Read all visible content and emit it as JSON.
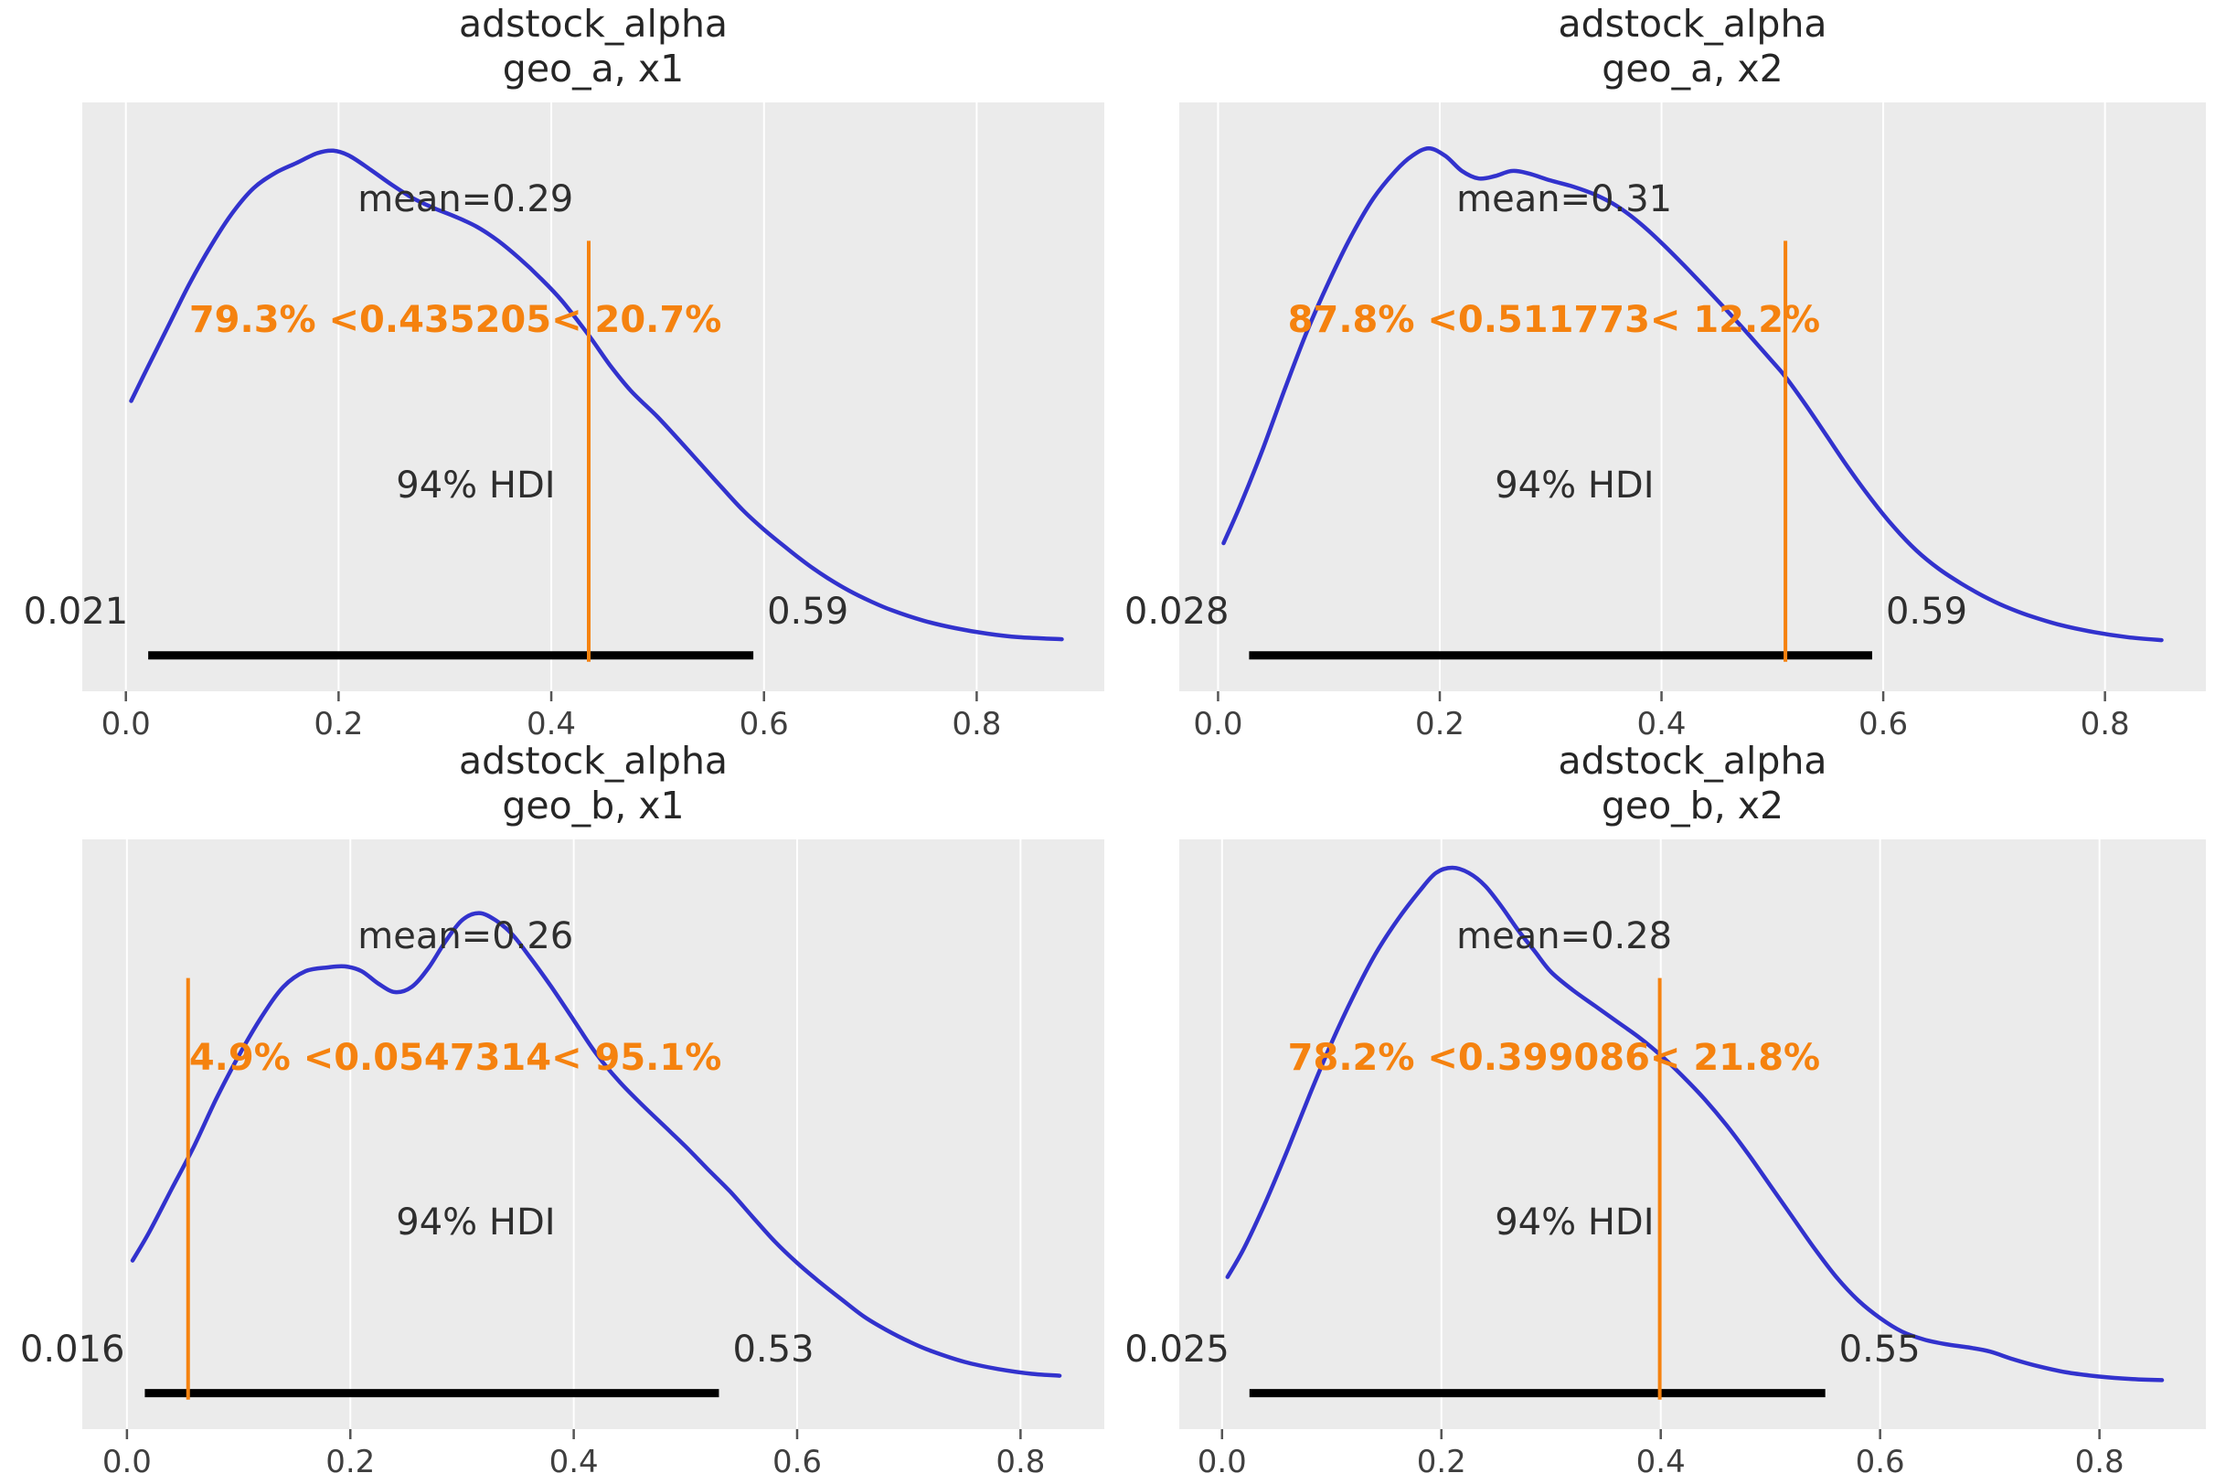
{
  "figure": {
    "background": "#ffffff",
    "plot_background": "#ebebeb",
    "grid_color": "#ffffff",
    "curve_color": "#3232cd",
    "ref_color": "#f5820f",
    "hdi_bar_color": "#000000",
    "title_color": "#262626",
    "text_color": "#2e2e2e",
    "tick_mark_color": "#555555",
    "tick_label_color": "#3f3f3f"
  },
  "chart_data": [
    {
      "id": "adstock_alpha_geo_a_x1",
      "type": "kde-posterior",
      "title_param": "adstock_alpha",
      "title_coord": "geo_a, x1",
      "mean": 0.29,
      "mean_label": "mean=0.29",
      "ref_value": 0.435205,
      "ref_label": "79.3% <0.435205< 20.7%",
      "hdi_text": "94% HDI",
      "hdi": [
        0.021,
        0.59
      ],
      "hdi_lower_label": "0.021",
      "hdi_upper_label": "0.59",
      "xlim": [
        -0.041,
        0.92
      ],
      "x_ticks": [
        0.0,
        0.2,
        0.4,
        0.6,
        0.8
      ],
      "x_tick_labels": [
        "0.0",
        "0.2",
        "0.4",
        "0.6",
        "0.8"
      ],
      "kde": [
        [
          0.005,
          0.5
        ],
        [
          0.02,
          0.565
        ],
        [
          0.04,
          0.65
        ],
        [
          0.06,
          0.735
        ],
        [
          0.08,
          0.81
        ],
        [
          0.1,
          0.875
        ],
        [
          0.12,
          0.925
        ],
        [
          0.14,
          0.955
        ],
        [
          0.16,
          0.975
        ],
        [
          0.18,
          0.995
        ],
        [
          0.195,
          1.0
        ],
        [
          0.21,
          0.99
        ],
        [
          0.23,
          0.962
        ],
        [
          0.25,
          0.932
        ],
        [
          0.27,
          0.905
        ],
        [
          0.29,
          0.885
        ],
        [
          0.31,
          0.868
        ],
        [
          0.33,
          0.848
        ],
        [
          0.35,
          0.82
        ],
        [
          0.37,
          0.785
        ],
        [
          0.39,
          0.745
        ],
        [
          0.41,
          0.7
        ],
        [
          0.435,
          0.632
        ],
        [
          0.455,
          0.572
        ],
        [
          0.475,
          0.52
        ],
        [
          0.5,
          0.468
        ],
        [
          0.52,
          0.422
        ],
        [
          0.54,
          0.375
        ],
        [
          0.56,
          0.328
        ],
        [
          0.58,
          0.282
        ],
        [
          0.6,
          0.243
        ],
        [
          0.62,
          0.208
        ],
        [
          0.64,
          0.175
        ],
        [
          0.66,
          0.146
        ],
        [
          0.68,
          0.121
        ],
        [
          0.7,
          0.1
        ],
        [
          0.72,
          0.082
        ],
        [
          0.75,
          0.061
        ],
        [
          0.78,
          0.046
        ],
        [
          0.81,
          0.035
        ],
        [
          0.84,
          0.028
        ],
        [
          0.88,
          0.024
        ]
      ]
    },
    {
      "id": "adstock_alpha_geo_a_x2",
      "type": "kde-posterior",
      "title_param": "adstock_alpha",
      "title_coord": "geo_a, x2",
      "mean": 0.31,
      "mean_label": "mean=0.31",
      "ref_value": 0.511773,
      "ref_label": "87.8% <0.511773< 12.2%",
      "hdi_text": "94% HDI",
      "hdi": [
        0.028,
        0.59
      ],
      "hdi_lower_label": "0.028",
      "hdi_upper_label": "0.59",
      "xlim": [
        -0.035,
        0.891
      ],
      "x_ticks": [
        0.0,
        0.2,
        0.4,
        0.6,
        0.8
      ],
      "x_tick_labels": [
        "0.0",
        "0.2",
        "0.4",
        "0.6",
        "0.8"
      ],
      "kde": [
        [
          0.005,
          0.215
        ],
        [
          0.02,
          0.29
        ],
        [
          0.04,
          0.4
        ],
        [
          0.06,
          0.52
        ],
        [
          0.08,
          0.635
        ],
        [
          0.1,
          0.735
        ],
        [
          0.12,
          0.825
        ],
        [
          0.14,
          0.9
        ],
        [
          0.16,
          0.955
        ],
        [
          0.175,
          0.985
        ],
        [
          0.19,
          1.0
        ],
        [
          0.205,
          0.985
        ],
        [
          0.22,
          0.955
        ],
        [
          0.235,
          0.94
        ],
        [
          0.25,
          0.945
        ],
        [
          0.265,
          0.955
        ],
        [
          0.28,
          0.95
        ],
        [
          0.3,
          0.936
        ],
        [
          0.32,
          0.924
        ],
        [
          0.34,
          0.908
        ],
        [
          0.36,
          0.885
        ],
        [
          0.38,
          0.852
        ],
        [
          0.4,
          0.812
        ],
        [
          0.42,
          0.768
        ],
        [
          0.44,
          0.722
        ],
        [
          0.46,
          0.675
        ],
        [
          0.48,
          0.626
        ],
        [
          0.5,
          0.576
        ],
        [
          0.512,
          0.545
        ],
        [
          0.53,
          0.49
        ],
        [
          0.55,
          0.425
        ],
        [
          0.57,
          0.36
        ],
        [
          0.59,
          0.3
        ],
        [
          0.61,
          0.246
        ],
        [
          0.63,
          0.2
        ],
        [
          0.65,
          0.164
        ],
        [
          0.67,
          0.135
        ],
        [
          0.69,
          0.11
        ],
        [
          0.71,
          0.089
        ],
        [
          0.73,
          0.072
        ],
        [
          0.76,
          0.052
        ],
        [
          0.79,
          0.038
        ],
        [
          0.82,
          0.028
        ],
        [
          0.851,
          0.022
        ]
      ]
    },
    {
      "id": "adstock_alpha_geo_b_x1",
      "type": "kde-posterior",
      "title_param": "adstock_alpha",
      "title_coord": "geo_b, x1",
      "mean": 0.26,
      "mean_label": "mean=0.26",
      "ref_value": 0.0547314,
      "ref_label": "4.9% <0.0547314< 95.1%",
      "hdi_text": "94% HDI",
      "hdi": [
        0.016,
        0.53
      ],
      "hdi_lower_label": "0.016",
      "hdi_upper_label": "0.53",
      "xlim": [
        -0.04,
        0.875
      ],
      "x_ticks": [
        0.0,
        0.2,
        0.4,
        0.6,
        0.8
      ],
      "x_tick_labels": [
        "0.0",
        "0.2",
        "0.4",
        "0.6",
        "0.8"
      ],
      "kde": [
        [
          0.005,
          0.27
        ],
        [
          0.02,
          0.33
        ],
        [
          0.04,
          0.42
        ],
        [
          0.06,
          0.51
        ],
        [
          0.08,
          0.61
        ],
        [
          0.1,
          0.7
        ],
        [
          0.12,
          0.78
        ],
        [
          0.14,
          0.845
        ],
        [
          0.16,
          0.878
        ],
        [
          0.18,
          0.886
        ],
        [
          0.195,
          0.888
        ],
        [
          0.21,
          0.878
        ],
        [
          0.225,
          0.852
        ],
        [
          0.24,
          0.834
        ],
        [
          0.255,
          0.845
        ],
        [
          0.27,
          0.885
        ],
        [
          0.285,
          0.94
        ],
        [
          0.3,
          0.985
        ],
        [
          0.315,
          1.0
        ],
        [
          0.33,
          0.985
        ],
        [
          0.345,
          0.955
        ],
        [
          0.36,
          0.91
        ],
        [
          0.38,
          0.845
        ],
        [
          0.4,
          0.775
        ],
        [
          0.42,
          0.705
        ],
        [
          0.44,
          0.648
        ],
        [
          0.46,
          0.6
        ],
        [
          0.48,
          0.555
        ],
        [
          0.5,
          0.51
        ],
        [
          0.52,
          0.462
        ],
        [
          0.54,
          0.415
        ],
        [
          0.56,
          0.362
        ],
        [
          0.58,
          0.31
        ],
        [
          0.6,
          0.265
        ],
        [
          0.62,
          0.225
        ],
        [
          0.64,
          0.188
        ],
        [
          0.66,
          0.152
        ],
        [
          0.68,
          0.124
        ],
        [
          0.7,
          0.1
        ],
        [
          0.72,
          0.08
        ],
        [
          0.75,
          0.057
        ],
        [
          0.78,
          0.042
        ],
        [
          0.81,
          0.032
        ],
        [
          0.835,
          0.028
        ]
      ]
    },
    {
      "id": "adstock_alpha_geo_b_x2",
      "type": "kde-posterior",
      "title_param": "adstock_alpha",
      "title_coord": "geo_b, x2",
      "mean": 0.28,
      "mean_label": "mean=0.28",
      "ref_value": 0.399086,
      "ref_label": "78.2% <0.399086< 21.8%",
      "hdi_text": "94% HDI",
      "hdi": [
        0.025,
        0.55
      ],
      "hdi_lower_label": "0.025",
      "hdi_upper_label": "0.55",
      "xlim": [
        -0.039,
        0.897
      ],
      "x_ticks": [
        0.0,
        0.2,
        0.4,
        0.6,
        0.8
      ],
      "x_tick_labels": [
        "0.0",
        "0.2",
        "0.4",
        "0.6",
        "0.8"
      ],
      "kde": [
        [
          0.005,
          0.215
        ],
        [
          0.02,
          0.27
        ],
        [
          0.04,
          0.36
        ],
        [
          0.06,
          0.46
        ],
        [
          0.08,
          0.565
        ],
        [
          0.1,
          0.665
        ],
        [
          0.12,
          0.755
        ],
        [
          0.14,
          0.835
        ],
        [
          0.16,
          0.9
        ],
        [
          0.18,
          0.955
        ],
        [
          0.195,
          0.99
        ],
        [
          0.21,
          1.0
        ],
        [
          0.225,
          0.99
        ],
        [
          0.24,
          0.965
        ],
        [
          0.255,
          0.925
        ],
        [
          0.27,
          0.88
        ],
        [
          0.285,
          0.84
        ],
        [
          0.3,
          0.8
        ],
        [
          0.32,
          0.765
        ],
        [
          0.34,
          0.735
        ],
        [
          0.36,
          0.705
        ],
        [
          0.38,
          0.675
        ],
        [
          0.399,
          0.642
        ],
        [
          0.42,
          0.6
        ],
        [
          0.44,
          0.556
        ],
        [
          0.46,
          0.506
        ],
        [
          0.48,
          0.45
        ],
        [
          0.5,
          0.39
        ],
        [
          0.52,
          0.33
        ],
        [
          0.54,
          0.27
        ],
        [
          0.56,
          0.215
        ],
        [
          0.58,
          0.17
        ],
        [
          0.6,
          0.136
        ],
        [
          0.62,
          0.11
        ],
        [
          0.64,
          0.095
        ],
        [
          0.66,
          0.086
        ],
        [
          0.68,
          0.08
        ],
        [
          0.7,
          0.072
        ],
        [
          0.72,
          0.058
        ],
        [
          0.74,
          0.046
        ],
        [
          0.77,
          0.032
        ],
        [
          0.8,
          0.024
        ],
        [
          0.83,
          0.019
        ],
        [
          0.857,
          0.017
        ]
      ]
    }
  ]
}
